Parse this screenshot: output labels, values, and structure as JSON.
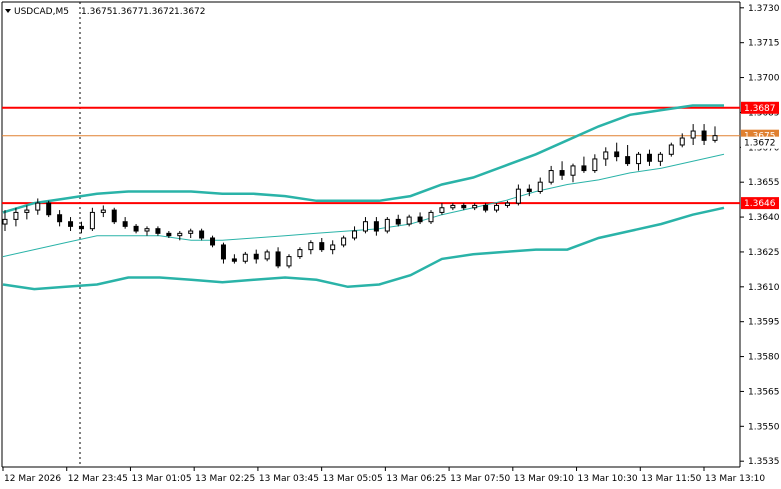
{
  "chart_data": {
    "type": "candlestick",
    "symbol": "USDCAD,M5",
    "ohlc_header": [
      "1.3675",
      "1.3677",
      "1.3672",
      "1.3672"
    ],
    "y_axis": {
      "min": 1.35325,
      "max": 1.37325,
      "ticks": [
        "1.3730",
        "1.3715",
        "1.3700",
        "1.3685",
        "1.3670",
        "1.3655",
        "1.3640",
        "1.3625",
        "1.3610",
        "1.3595",
        "1.3580",
        "1.3565",
        "1.3550",
        "1.3535"
      ]
    },
    "x_axis": {
      "ticks": [
        "12 Mar 2026",
        "12 Mar 23:45",
        "13 Mar 01:05",
        "13 Mar 02:25",
        "13 Mar 03:45",
        "13 Mar 05:05",
        "13 Mar 06:25",
        "13 Mar 07:50",
        "13 Mar 09:10",
        "13 Mar 10:30",
        "13 Mar 11:50",
        "13 Mar 13:10"
      ]
    },
    "levels": [
      {
        "label": "1.3687",
        "value": 1.3687,
        "color": "#ff0000"
      },
      {
        "label": "1.3646",
        "value": 1.3646,
        "color": "#ff0000"
      },
      {
        "label": "1.3675",
        "value": 1.3675,
        "color": "#e08030"
      },
      {
        "label": "1.3672",
        "value": 1.3672,
        "color": "#000000"
      }
    ],
    "bands": {
      "color": "#2ab3a8",
      "upper": [
        1.3642,
        1.3646,
        1.3648,
        1.365,
        1.3651,
        1.3651,
        1.3651,
        1.365,
        1.365,
        1.3649,
        1.3647,
        1.3647,
        1.3647,
        1.3649,
        1.3654,
        1.3657,
        1.3662,
        1.3667,
        1.3673,
        1.3679,
        1.3684,
        1.3686,
        1.3688,
        1.3688
      ],
      "middle": [
        1.3623,
        1.3626,
        1.3629,
        1.3632,
        1.3632,
        1.3632,
        1.363,
        1.363,
        1.3631,
        1.3632,
        1.3633,
        1.3634,
        1.3635,
        1.3637,
        1.3641,
        1.3644,
        1.3647,
        1.3651,
        1.3654,
        1.3656,
        1.3659,
        1.3661,
        1.3664,
        1.3667
      ],
      "lower": [
        1.3611,
        1.3609,
        1.361,
        1.3611,
        1.3614,
        1.3614,
        1.3613,
        1.3612,
        1.3613,
        1.3614,
        1.3613,
        1.361,
        1.3611,
        1.3615,
        1.3622,
        1.3624,
        1.3625,
        1.3626,
        1.3626,
        1.3631,
        1.3634,
        1.3637,
        1.3641,
        1.3644
      ]
    },
    "candles": [
      [
        1.3637,
        1.3643,
        1.3634,
        1.3639
      ],
      [
        1.3639,
        1.3644,
        1.3636,
        1.3642
      ],
      [
        1.3642,
        1.3645,
        1.3639,
        1.3643
      ],
      [
        1.3643,
        1.3648,
        1.3641,
        1.3646
      ],
      [
        1.3646,
        1.3647,
        1.364,
        1.3641
      ],
      [
        1.3641,
        1.3643,
        1.3636,
        1.3638
      ],
      [
        1.3638,
        1.364,
        1.3634,
        1.3636
      ],
      [
        1.3636,
        1.3638,
        1.3633,
        1.3635
      ],
      [
        1.3635,
        1.3644,
        1.3634,
        1.3642
      ],
      [
        1.3642,
        1.3645,
        1.364,
        1.3643
      ],
      [
        1.3643,
        1.3644,
        1.3637,
        1.3638
      ],
      [
        1.3638,
        1.364,
        1.3635,
        1.3636
      ],
      [
        1.3636,
        1.3637,
        1.3633,
        1.3634
      ],
      [
        1.3634,
        1.3636,
        1.3632,
        1.3635
      ],
      [
        1.3635,
        1.3636,
        1.3632,
        1.3633
      ],
      [
        1.3633,
        1.3634,
        1.3631,
        1.3632
      ],
      [
        1.3632,
        1.3634,
        1.363,
        1.3633
      ],
      [
        1.3633,
        1.3635,
        1.3631,
        1.3634
      ],
      [
        1.3634,
        1.3635,
        1.363,
        1.3631
      ],
      [
        1.3631,
        1.3632,
        1.3627,
        1.3628
      ],
      [
        1.3628,
        1.3629,
        1.362,
        1.3622
      ],
      [
        1.3622,
        1.3624,
        1.362,
        1.3621
      ],
      [
        1.3621,
        1.3625,
        1.362,
        1.3624
      ],
      [
        1.3624,
        1.3626,
        1.362,
        1.3622
      ],
      [
        1.3622,
        1.3626,
        1.3621,
        1.3625
      ],
      [
        1.3625,
        1.3627,
        1.3618,
        1.3619
      ],
      [
        1.3619,
        1.3624,
        1.3618,
        1.3623
      ],
      [
        1.3623,
        1.3627,
        1.3622,
        1.3626
      ],
      [
        1.3626,
        1.363,
        1.3624,
        1.3629
      ],
      [
        1.3629,
        1.3631,
        1.3625,
        1.3626
      ],
      [
        1.3626,
        1.363,
        1.3624,
        1.3628
      ],
      [
        1.3628,
        1.3632,
        1.3627,
        1.3631
      ],
      [
        1.3631,
        1.3636,
        1.363,
        1.3634
      ],
      [
        1.3634,
        1.364,
        1.3633,
        1.3638
      ],
      [
        1.3638,
        1.364,
        1.3632,
        1.3634
      ],
      [
        1.3634,
        1.364,
        1.3633,
        1.3639
      ],
      [
        1.3639,
        1.3641,
        1.3636,
        1.3637
      ],
      [
        1.3637,
        1.3641,
        1.3636,
        1.364
      ],
      [
        1.364,
        1.3642,
        1.3637,
        1.3638
      ],
      [
        1.3638,
        1.3643,
        1.3637,
        1.3642
      ],
      [
        1.3642,
        1.3646,
        1.3641,
        1.3644
      ],
      [
        1.3644,
        1.3646,
        1.3643,
        1.3645
      ],
      [
        1.3645,
        1.3646,
        1.3643,
        1.3644
      ],
      [
        1.3644,
        1.3646,
        1.3643,
        1.3645
      ],
      [
        1.3645,
        1.3646,
        1.3642,
        1.3643
      ],
      [
        1.3643,
        1.3646,
        1.3642,
        1.3645
      ],
      [
        1.3645,
        1.3647,
        1.3644,
        1.3646
      ],
      [
        1.3646,
        1.3654,
        1.3645,
        1.3652
      ],
      [
        1.3652,
        1.3654,
        1.3649,
        1.3651
      ],
      [
        1.3651,
        1.3657,
        1.365,
        1.3655
      ],
      [
        1.3655,
        1.3662,
        1.3654,
        1.366
      ],
      [
        1.366,
        1.3664,
        1.3656,
        1.3658
      ],
      [
        1.3658,
        1.3663,
        1.3655,
        1.3662
      ],
      [
        1.3662,
        1.3666,
        1.3659,
        1.366
      ],
      [
        1.366,
        1.3667,
        1.3659,
        1.3665
      ],
      [
        1.3665,
        1.367,
        1.3662,
        1.3668
      ],
      [
        1.3668,
        1.3672,
        1.3664,
        1.3666
      ],
      [
        1.3666,
        1.3671,
        1.3662,
        1.3663
      ],
      [
        1.3663,
        1.3668,
        1.366,
        1.3667
      ],
      [
        1.3667,
        1.3669,
        1.3662,
        1.3664
      ],
      [
        1.3664,
        1.3668,
        1.3662,
        1.3667
      ],
      [
        1.3667,
        1.3672,
        1.3666,
        1.3671
      ],
      [
        1.3671,
        1.3676,
        1.367,
        1.3674
      ],
      [
        1.3674,
        1.368,
        1.3671,
        1.3677
      ],
      [
        1.3677,
        1.368,
        1.3671,
        1.3673
      ],
      [
        1.3673,
        1.3679,
        1.3672,
        1.3675
      ]
    ]
  }
}
